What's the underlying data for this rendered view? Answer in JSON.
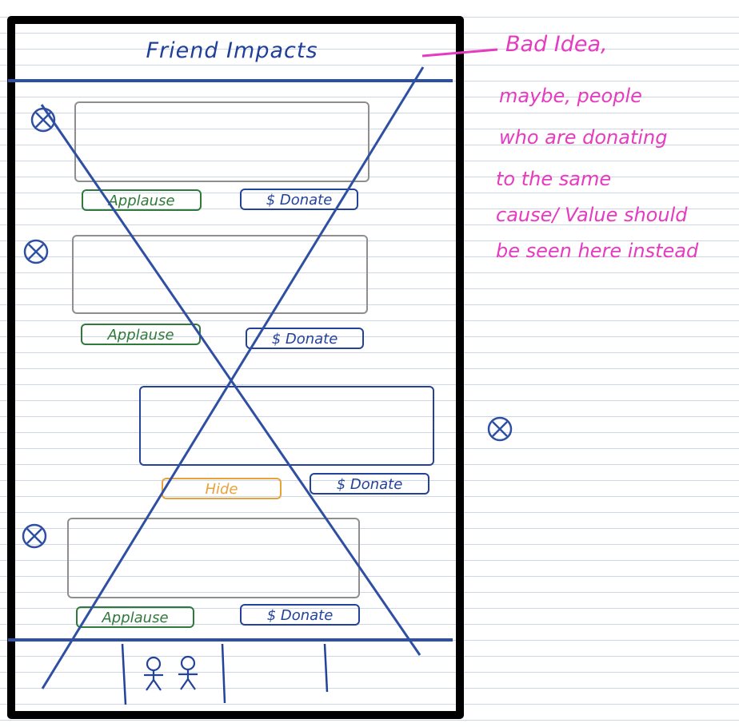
{
  "screen": {
    "title": "Friend Impacts"
  },
  "feed": {
    "items": [
      {
        "applause_label": "Applause",
        "donate_label": "$ Donate"
      },
      {
        "applause_label": "Applause",
        "donate_label": "$ Donate"
      },
      {
        "hide_label": "Hide",
        "donate_label": "$ Donate"
      },
      {
        "applause_label": "Applause",
        "donate_label": "$ Donate"
      }
    ]
  },
  "annotation": {
    "lines": [
      "Bad Idea,",
      "maybe, people",
      "who are donating",
      "to the same",
      "cause/ Value should",
      "be seen here instead"
    ]
  },
  "tab_bar": {
    "icons": [
      "friends-icon"
    ]
  },
  "colors": {
    "ink_blue": "#2e4fa2",
    "applause_green": "#2f7a3a",
    "donate_blue": "#23439a",
    "hide_orange": "#e8a23a",
    "note_pink": "#e63bc0",
    "card_gray": "#8e8e8e"
  }
}
